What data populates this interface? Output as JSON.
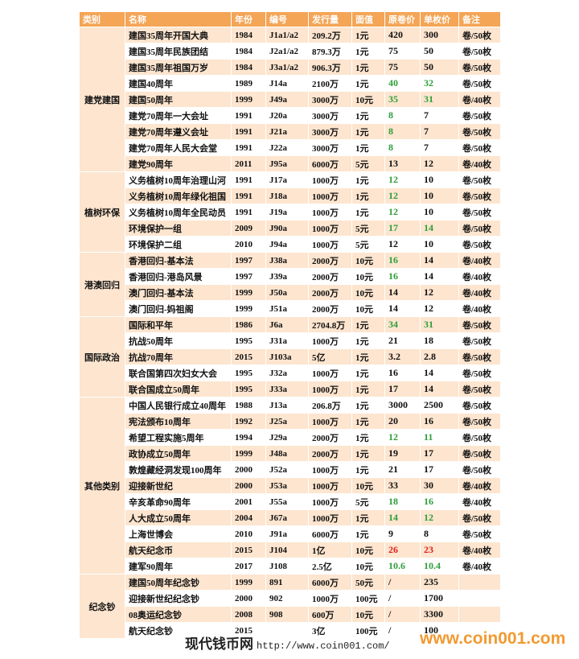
{
  "table": {
    "header": [
      "类别",
      "名称",
      "年份",
      "编号",
      "发行量",
      "面值",
      "原卷价",
      "单枚价",
      "备注"
    ],
    "groups": [
      {
        "category": "建党建国",
        "rows": [
          {
            "cells": [
              "建国35周年开国大典",
              "1984",
              "J1a1/a2",
              "209.2万",
              "1元",
              "420",
              "300",
              "卷/50枚"
            ]
          },
          {
            "cells": [
              "建国35周年民族团结",
              "1984",
              "J2a1/a2",
              "879.3万",
              "1元",
              "75",
              "50",
              "卷/50枚"
            ]
          },
          {
            "cells": [
              "建国35周年祖国万岁",
              "1984",
              "J3a1/a2",
              "906.3万",
              "1元",
              "75",
              "50",
              "卷/50枚"
            ]
          },
          {
            "cells": [
              "建国40周年",
              "1989",
              "J14a",
              "2100万",
              "1元",
              "40",
              "32",
              "卷/50枚"
            ],
            "price_colors": [
              "#2e9e3a",
              "#2e9e3a"
            ]
          },
          {
            "cells": [
              "建国50周年",
              "1999",
              "J49a",
              "3000万",
              "10元",
              "35",
              "31",
              "卷/40枚"
            ],
            "price_colors": [
              "#2e9e3a",
              "#2e9e3a"
            ]
          },
          {
            "cells": [
              "建党70周年一大会址",
              "1991",
              "J20a",
              "3000万",
              "1元",
              "8",
              "7",
              "卷/50枚"
            ],
            "price_colors": [
              "#2e9e3a",
              null
            ]
          },
          {
            "cells": [
              "建党70周年遵义会址",
              "1991",
              "J21a",
              "3000万",
              "1元",
              "8",
              "7",
              "卷/50枚"
            ],
            "price_colors": [
              "#2e9e3a",
              null
            ]
          },
          {
            "cells": [
              "建党70周年人民大会堂",
              "1991",
              "J22a",
              "3000万",
              "1元",
              "8",
              "7",
              "卷/50枚"
            ],
            "price_colors": [
              "#2e9e3a",
              null
            ]
          },
          {
            "cells": [
              "建党90周年",
              "2011",
              "J95a",
              "6000万",
              "5元",
              "13",
              "12",
              "卷/40枚"
            ]
          }
        ]
      },
      {
        "category": "植树环保",
        "rows": [
          {
            "cells": [
              "义务植树10周年治理山河",
              "1991",
              "J17a",
              "1000万",
              "1元",
              "12",
              "10",
              "卷/50枚"
            ],
            "price_colors": [
              "#2e9e3a",
              null
            ]
          },
          {
            "cells": [
              "义务植树10周年绿化祖国",
              "1991",
              "J18a",
              "1000万",
              "1元",
              "12",
              "10",
              "卷/50枚"
            ],
            "price_colors": [
              "#2e9e3a",
              null
            ]
          },
          {
            "cells": [
              "义务植树10周年全民动员",
              "1991",
              "J19a",
              "1000万",
              "1元",
              "12",
              "10",
              "卷/50枚"
            ],
            "price_colors": [
              "#2e9e3a",
              null
            ]
          },
          {
            "cells": [
              "环境保护一组",
              "2009",
              "J90a",
              "1000万",
              "5元",
              "17",
              "14",
              "卷/50枚"
            ],
            "price_colors": [
              "#2e9e3a",
              "#2e9e3a"
            ]
          },
          {
            "cells": [
              "环境保护二组",
              "2010",
              "J94a",
              "1000万",
              "5元",
              "12",
              "10",
              "卷/50枚"
            ]
          }
        ]
      },
      {
        "category": "港澳回归",
        "rows": [
          {
            "cells": [
              "香港回归-基本法",
              "1997",
              "J38a",
              "2000万",
              "10元",
              "16",
              "14",
              "卷/40枚"
            ],
            "price_colors": [
              "#2e9e3a",
              null
            ]
          },
          {
            "cells": [
              "香港回归-港岛风景",
              "1997",
              "J39a",
              "2000万",
              "10元",
              "16",
              "14",
              "卷/40枚"
            ],
            "price_colors": [
              "#2e9e3a",
              null
            ]
          },
          {
            "cells": [
              "澳门回归-基本法",
              "1999",
              "J50a",
              "2000万",
              "10元",
              "14",
              "12",
              "卷/40枚"
            ]
          },
          {
            "cells": [
              "澳门回归-妈祖阁",
              "1999",
              "J51a",
              "2000万",
              "10元",
              "14",
              "12",
              "卷/40枚"
            ]
          }
        ]
      },
      {
        "category": "国际政治",
        "rows": [
          {
            "cells": [
              "国际和平年",
              "1986",
              "J6a",
              "2704.8万",
              "1元",
              "34",
              "31",
              "卷/50枚"
            ],
            "price_colors": [
              "#2e9e3a",
              "#2e9e3a"
            ]
          },
          {
            "cells": [
              "抗战50周年",
              "1995",
              "J31a",
              "1000万",
              "1元",
              "21",
              "18",
              "卷/50枚"
            ]
          },
          {
            "cells": [
              "抗战70周年",
              "2015",
              "J103a",
              "5亿",
              "1元",
              "3.2",
              "2.8",
              "卷/50枚"
            ]
          },
          {
            "cells": [
              "联合国第四次妇女大会",
              "1995",
              "J32a",
              "1000万",
              "1元",
              "16",
              "14",
              "卷/50枚"
            ]
          },
          {
            "cells": [
              "联合国成立50周年",
              "1995",
              "J33a",
              "1000万",
              "1元",
              "17",
              "14",
              "卷/50枚"
            ]
          }
        ]
      },
      {
        "category": "其他类别",
        "rows": [
          {
            "cells": [
              "中国人民银行成立40周年",
              "1988",
              "J13a",
              "206.8万",
              "1元",
              "3000",
              "2500",
              "卷/50枚"
            ]
          },
          {
            "cells": [
              "宪法颁布10周年",
              "1992",
              "J25a",
              "1000万",
              "1元",
              "20",
              "16",
              "卷/50枚"
            ]
          },
          {
            "cells": [
              "希望工程实施5周年",
              "1994",
              "J29a",
              "2000万",
              "1元",
              "12",
              "11",
              "卷/50枚"
            ],
            "price_colors": [
              "#2e9e3a",
              "#2e9e3a"
            ]
          },
          {
            "cells": [
              "政协成立50周年",
              "1999",
              "J48a",
              "2000万",
              "1元",
              "19",
              "17",
              "卷/50枚"
            ]
          },
          {
            "cells": [
              "敦煌藏经洞发现100周年",
              "2000",
              "J52a",
              "1000万",
              "1元",
              "21",
              "17",
              "卷/50枚"
            ]
          },
          {
            "cells": [
              "迎接新世纪",
              "2000",
              "J53a",
              "1000万",
              "10元",
              "33",
              "30",
              "卷/40枚"
            ]
          },
          {
            "cells": [
              "辛亥革命90周年",
              "2001",
              "J55a",
              "1000万",
              "5元",
              "18",
              "16",
              "卷/40枚"
            ],
            "price_colors": [
              "#2e9e3a",
              "#2e9e3a"
            ]
          },
          {
            "cells": [
              "人大成立50周年",
              "2004",
              "J67a",
              "1000万",
              "1元",
              "14",
              "12",
              "卷/50枚"
            ],
            "price_colors": [
              "#2e9e3a",
              "#2e9e3a"
            ]
          },
          {
            "cells": [
              "上海世博会",
              "2010",
              "J91a",
              "6000万",
              "1元",
              "9",
              "8",
              "卷/50枚"
            ]
          },
          {
            "cells": [
              "航天纪念币",
              "2015",
              "J104",
              "1亿",
              "10元",
              "26",
              "23",
              "卷/40枚"
            ],
            "price_colors": [
              "#e0201b",
              "#e0201b"
            ]
          },
          {
            "cells": [
              "建军90周年",
              "2017",
              "J108",
              "2.5亿",
              "10元",
              "10.6",
              "10.4",
              "卷/40枚"
            ],
            "price_colors": [
              "#2e9e3a",
              "#2e9e3a"
            ]
          }
        ]
      },
      {
        "category": "纪念钞",
        "rows": [
          {
            "cells": [
              "建国50周年纪念钞",
              "1999",
              "891",
              "6000万",
              "50元",
              "/",
              "235",
              null
            ]
          },
          {
            "cells": [
              "迎接新世纪纪念钞",
              "2000",
              "902",
              "1000万",
              "100元",
              "/",
              "1700",
              null
            ]
          },
          {
            "cells": [
              "08奥运纪念钞",
              "2008",
              "908",
              "600万",
              "10元",
              "/",
              "3300",
              null
            ]
          },
          {
            "cells": [
              "航天纪念钞",
              "2015",
              null,
              "3亿",
              "100元",
              "/",
              "100",
              null
            ]
          }
        ]
      }
    ]
  },
  "footer": {
    "site": "现代钱币网",
    "url": "http://www.coin001.com/",
    "watermark": "www.coin001.com"
  }
}
